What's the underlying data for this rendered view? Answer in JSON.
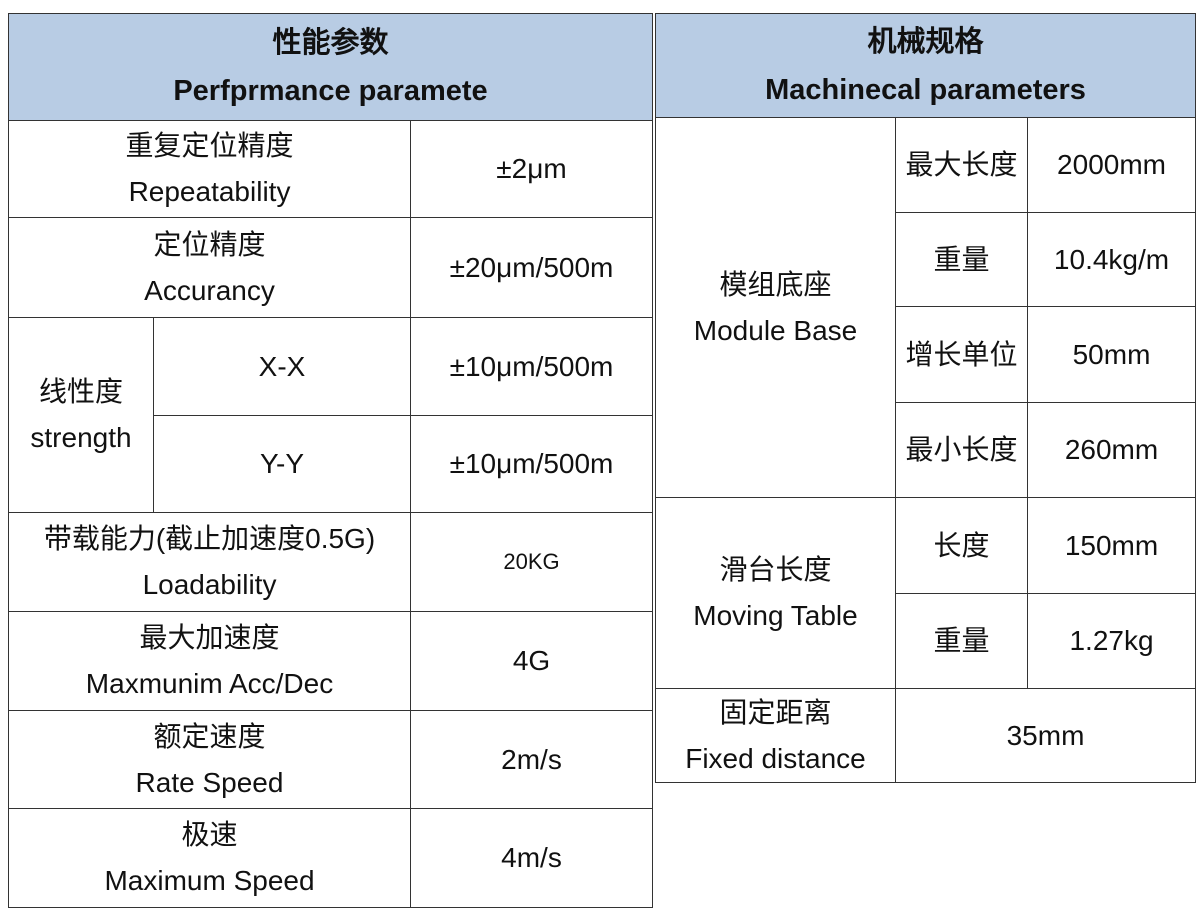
{
  "performance": {
    "title_cn": "性能参数",
    "title_en": "Perfprmance paramete",
    "rows": [
      {
        "label_cn": "重复定位精度",
        "label_en": "Repeatability",
        "value": "±2μm"
      },
      {
        "label_cn": "定位精度",
        "label_en": "Accurancy",
        "value": "±20μm/500m"
      },
      {
        "label_cn": "线性度",
        "label_en": "strength",
        "sub": [
          {
            "label": "X-X",
            "value": "±10μm/500m"
          },
          {
            "label": "Y-Y",
            "value": "±10μm/500m"
          }
        ]
      },
      {
        "label_cn": "带载能力(截止加速度0.5G)",
        "label_en": "Loadability",
        "value": "20KG"
      },
      {
        "label_cn": "最大加速度",
        "label_en": "Maxmunim Acc/Dec",
        "value": "4G"
      },
      {
        "label_cn": "额定速度",
        "label_en": "Rate Speed",
        "value": "2m/s"
      },
      {
        "label_cn": "极速",
        "label_en": "Maximum Speed",
        "value": "4m/s"
      }
    ]
  },
  "mechanical": {
    "title_cn": "机械规格",
    "title_en": "Machinecal parameters",
    "groups": [
      {
        "label_cn": "模组底座",
        "label_en": "Module Base",
        "items": [
          {
            "label": "最大长度",
            "value": "2000mm"
          },
          {
            "label": "重量",
            "value": "10.4kg/m"
          },
          {
            "label": "增长单位",
            "value": "50mm"
          },
          {
            "label": "最小长度",
            "value": "260mm"
          }
        ]
      },
      {
        "label_cn": "滑台长度",
        "label_en": "Moving Table",
        "items": [
          {
            "label": "长度",
            "value": "150mm"
          },
          {
            "label": "重量",
            "value": "1.27kg"
          }
        ]
      },
      {
        "label_cn": "固定距离",
        "label_en": "Fixed distance",
        "value": "35mm"
      }
    ]
  },
  "colors": {
    "header_bg": "#b8cce4",
    "border": "#333333"
  }
}
